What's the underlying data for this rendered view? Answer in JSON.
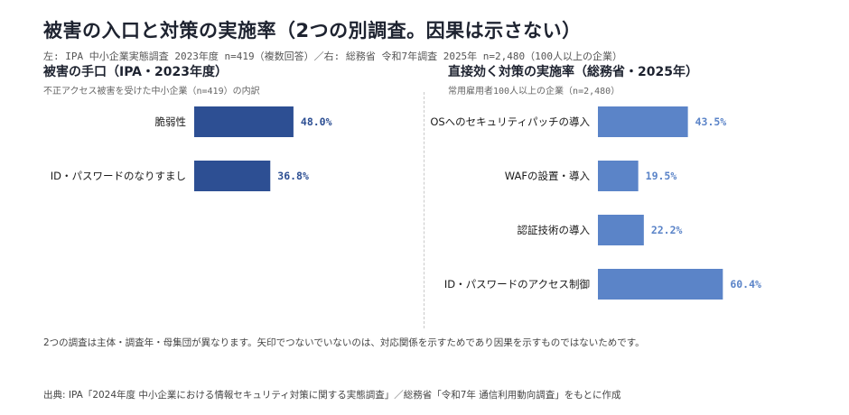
{
  "header": {
    "title": "被害の入口と対策の実施率（2つの別調査。因果は示さない）",
    "subtitle": "左: IPA 中小企業実態調査 2023年度 n=419（複数回答）／右: 総務省 令和7年調査 2025年 n=2,480（100人以上の企業）"
  },
  "colors": {
    "left_bar": "#2d4f93",
    "right_bar": "#5b84c8"
  },
  "chart_data": [
    {
      "type": "bar",
      "orientation": "horizontal",
      "title": "被害の手口（IPA・2023年度）",
      "subtitle": "不正アクセス被害を受けた中小企業（n=419）の内訳",
      "categories": [
        "脆弱性",
        "ID・パスワードのなりすまし"
      ],
      "values": [
        48.0,
        36.8
      ],
      "value_labels": [
        "48.0%",
        "36.8%"
      ],
      "xlim": [
        0,
        100
      ],
      "grid": false
    },
    {
      "type": "bar",
      "orientation": "horizontal",
      "title": "直接効く対策の実施率（総務省・2025年）",
      "subtitle": "常用雇用者100人以上の企業（n=2,480）",
      "categories": [
        "OSへのセキュリティパッチの導入",
        "WAFの設置・導入",
        "認証技術の導入",
        "ID・パスワードのアクセス制御"
      ],
      "values": [
        43.5,
        19.5,
        22.2,
        60.4
      ],
      "value_labels": [
        "43.5%",
        "19.5%",
        "22.2%",
        "60.4%"
      ],
      "xlim": [
        0,
        100
      ],
      "grid": false
    }
  ],
  "footer": {
    "note": "2つの調査は主体・調査年・母集団が異なります。矢印でつないでいないのは、対応関係を示すためであり因果を示すものではないためです。",
    "source": "出典: IPA「2024年度 中小企業における情報セキュリティ対策に関する実態調査」／総務省「令和7年 通信利用動向調査」をもとに作成"
  }
}
